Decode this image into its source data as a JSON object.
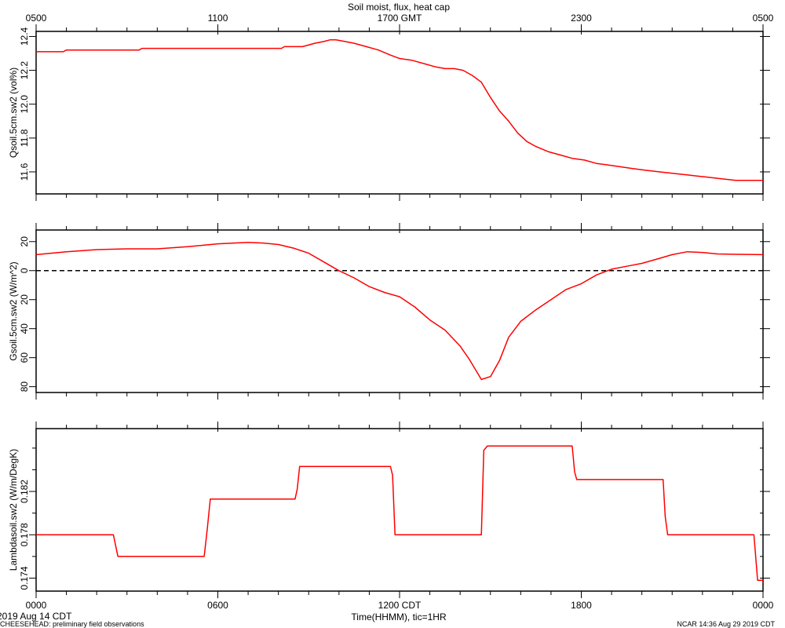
{
  "figure": {
    "title": "Soil moist, flux, heat cap",
    "top_axis_ticks": [
      "0500",
      "1100",
      "1700 GMT",
      "2300",
      "0500"
    ],
    "bottom_axis_ticks": [
      "0000",
      "0600",
      "1200 CDT",
      "1800",
      "0000"
    ],
    "xlabel": "Time(HHMM), tic=1HR",
    "date_label": "2019 Aug 14 CDT",
    "footer_left": "CHEESEHEAD: preliminary field observations",
    "footer_right": "NCAR 14:36 Aug 29 2019 CDT"
  },
  "chart_data": [
    {
      "type": "line",
      "ylabel": "Qsoil.5cm.sw2 (vol%)",
      "x_unit": "hours CDT",
      "xlim": [
        0,
        24
      ],
      "ylim": [
        11.47,
        12.43
      ],
      "yticks": [
        11.6,
        11.8,
        12.0,
        12.2,
        12.4
      ],
      "ytick_labels": [
        "11.6",
        "11.8",
        "12.0",
        "12.2",
        "12.4"
      ],
      "line_color": "#ff0000",
      "x": [
        0,
        0.9,
        1.0,
        1.2,
        3.4,
        3.5,
        5.0,
        7.0,
        8.1,
        8.2,
        8.8,
        9.2,
        9.5,
        9.7,
        9.9,
        10.2,
        10.5,
        10.9,
        11.3,
        11.7,
        12.0,
        12.4,
        12.8,
        13.2,
        13.5,
        13.8,
        14.1,
        14.4,
        14.7,
        15.0,
        15.3,
        15.6,
        15.9,
        16.2,
        16.5,
        16.9,
        17.3,
        17.7,
        18.1,
        18.5,
        18.9,
        19.3,
        19.7,
        20.1,
        20.6,
        21.1,
        21.6,
        22.1,
        22.6,
        23.1,
        24.0
      ],
      "y": [
        12.31,
        12.31,
        12.32,
        12.32,
        12.32,
        12.33,
        12.33,
        12.33,
        12.33,
        12.34,
        12.34,
        12.36,
        12.37,
        12.38,
        12.38,
        12.37,
        12.36,
        12.34,
        12.32,
        12.29,
        12.27,
        12.26,
        12.24,
        12.22,
        12.21,
        12.21,
        12.2,
        12.17,
        12.13,
        12.04,
        11.96,
        11.9,
        11.83,
        11.78,
        11.75,
        11.72,
        11.7,
        11.68,
        11.67,
        11.65,
        11.64,
        11.63,
        11.62,
        11.61,
        11.6,
        11.59,
        11.58,
        11.57,
        11.56,
        11.55,
        11.55
      ]
    },
    {
      "type": "line",
      "ylabel": "Gsoil.5cm.sw2 (W/m^2)",
      "x_unit": "hours CDT",
      "xlim": [
        0,
        24
      ],
      "ylim": [
        -84,
        28
      ],
      "yticks": [
        -80,
        -60,
        -40,
        -20,
        0,
        20
      ],
      "ytick_labels": [
        "80",
        "60",
        "40",
        "20",
        "0",
        "20"
      ],
      "zero_line": "dashed",
      "line_color": "#ff0000",
      "x": [
        0,
        1,
        2,
        3,
        4,
        5,
        6,
        7,
        7.5,
        8,
        8.5,
        9,
        9.5,
        10,
        10.5,
        11,
        11.5,
        12,
        12.5,
        13,
        13.5,
        14,
        14.3,
        14.7,
        15.0,
        15.3,
        15.6,
        16,
        16.5,
        17,
        17.5,
        18,
        18.5,
        19,
        19.5,
        20,
        20.5,
        21,
        21.5,
        22,
        22.5,
        23,
        24
      ],
      "y": [
        11,
        13,
        14.5,
        15,
        15,
        16.5,
        18.5,
        19.5,
        19,
        18,
        15.5,
        12,
        6,
        0,
        -5,
        -11,
        -15,
        -18,
        -25,
        -34,
        -41,
        -52,
        -61,
        -75,
        -73,
        -62,
        -46,
        -35,
        -27,
        -20,
        -13,
        -9,
        -3,
        1,
        3,
        5,
        8,
        11,
        13,
        12.5,
        11.5,
        11.3,
        11
      ]
    },
    {
      "type": "line",
      "ylabel": "Lambdasoil.sw2 (W/m/DegK)",
      "x_unit": "hours CDT",
      "xlim": [
        0,
        24
      ],
      "ylim": [
        0.1728,
        0.1878
      ],
      "yticks": [
        0.174,
        0.178,
        0.182
      ],
      "ytick_labels": [
        "0.174",
        "0.178",
        "0.182"
      ],
      "minor_yticks": [
        0.176,
        0.18,
        0.184,
        0.186
      ],
      "line_color": "#ff0000",
      "x": [
        0,
        2.55,
        2.7,
        5.55,
        5.65,
        5.75,
        8.55,
        8.62,
        8.7,
        11.7,
        11.77,
        11.85,
        14.7,
        14.78,
        14.9,
        17.7,
        17.78,
        17.85,
        20.7,
        20.77,
        20.85,
        23.7,
        23.82,
        24
      ],
      "y": [
        0.178,
        0.178,
        0.176,
        0.176,
        0.1785,
        0.1813,
        0.1813,
        0.1822,
        0.1843,
        0.1843,
        0.1835,
        0.178,
        0.178,
        0.1858,
        0.1862,
        0.1862,
        0.1838,
        0.1831,
        0.1831,
        0.1797,
        0.178,
        0.178,
        0.1738,
        0.1738
      ]
    }
  ]
}
